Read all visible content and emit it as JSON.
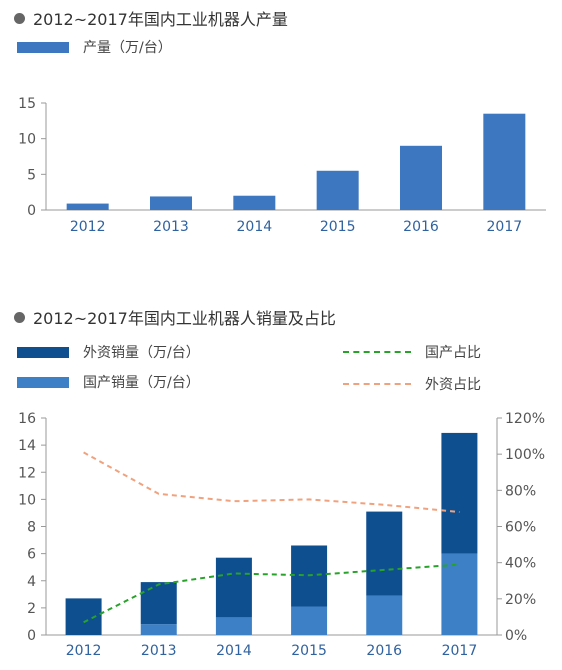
{
  "charts": {
    "production": {
      "title": "2012~2017年国内工业机器人产量",
      "legend_label": "产量（万/台）"
    },
    "sales": {
      "title": "2012~2017年国内工业机器人销量及占比",
      "legend": {
        "foreign_sales": "外资销量（万/台）",
        "domestic_sales": "国产销量（万/台）",
        "domestic_share": "国产占比",
        "foreign_share": "外资占比"
      }
    }
  },
  "colors": {
    "production_bar": "#3d77bf",
    "foreign_bar": "#0e4f8f",
    "domestic_bar": "#3d80c6",
    "domestic_line": "#27a32a",
    "foreign_line": "#f0a27e"
  },
  "chart_data": [
    {
      "type": "bar",
      "title": "2012~2017年国内工业机器人产量",
      "categories": [
        "2012",
        "2013",
        "2014",
        "2015",
        "2016",
        "2017"
      ],
      "series": [
        {
          "name": "产量（万/台）",
          "values": [
            0.9,
            1.9,
            2.0,
            5.5,
            9.0,
            13.5
          ]
        }
      ],
      "ylim": [
        0,
        15
      ],
      "yticks": [
        0,
        5,
        10,
        15
      ],
      "legend": "top-left"
    },
    {
      "type": "bar",
      "title": "2012~2017年国内工业机器人销量及占比",
      "categories": [
        "2012",
        "2013",
        "2014",
        "2015",
        "2016",
        "2017"
      ],
      "series": [
        {
          "name": "国产销量（万/台）",
          "values": [
            0,
            0.8,
            1.3,
            2.1,
            2.9,
            6.0
          ]
        },
        {
          "name": "外资销量（万/台）",
          "values": [
            2.7,
            3.1,
            4.4,
            4.5,
            6.2,
            8.9
          ]
        }
      ],
      "line_series": [
        {
          "name": "国产占比",
          "values": [
            7,
            28,
            34,
            33,
            36,
            39
          ]
        },
        {
          "name": "外资占比",
          "values": [
            101,
            78,
            74,
            75,
            72,
            68
          ]
        }
      ],
      "ylim": [
        0,
        16
      ],
      "yticks": [
        0,
        2,
        4,
        6,
        8,
        10,
        12,
        14,
        16
      ],
      "y2lim": [
        0,
        120
      ],
      "y2ticks": [
        "0%",
        "20%",
        "40%",
        "60%",
        "80%",
        "100%",
        "120%"
      ],
      "stacked": true,
      "legend": "top"
    }
  ]
}
